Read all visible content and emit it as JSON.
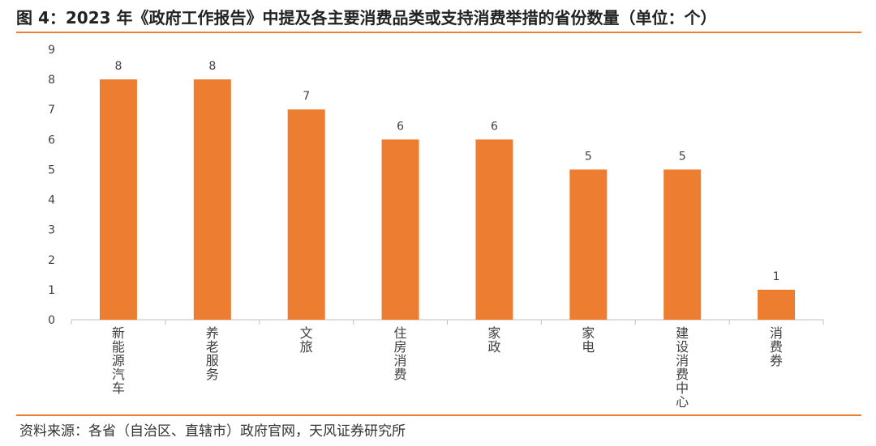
{
  "title": "图 4：2023 年《政府工作报告》中提及各主要消费品类或支持消费举措的省份数量（单位：个）",
  "source": "资料来源：各省（自治区、直辖市）政府官网，天风证券研究所",
  "colors": {
    "accent": "#ED7D31",
    "bar": "#ED7D31",
    "axis": "#BFBFBF"
  },
  "chart_data": {
    "type": "bar",
    "categories": [
      "新能源汽车",
      "养老服务",
      "文旅",
      "住房消费",
      "家政",
      "家电",
      "建设消费中心",
      "消费券"
    ],
    "values": [
      8,
      8,
      7,
      6,
      6,
      5,
      5,
      1
    ],
    "ylim": [
      0,
      9
    ],
    "yticks": [
      0,
      1,
      2,
      3,
      4,
      5,
      6,
      7,
      8,
      9
    ],
    "grid": false,
    "legend": "none"
  }
}
